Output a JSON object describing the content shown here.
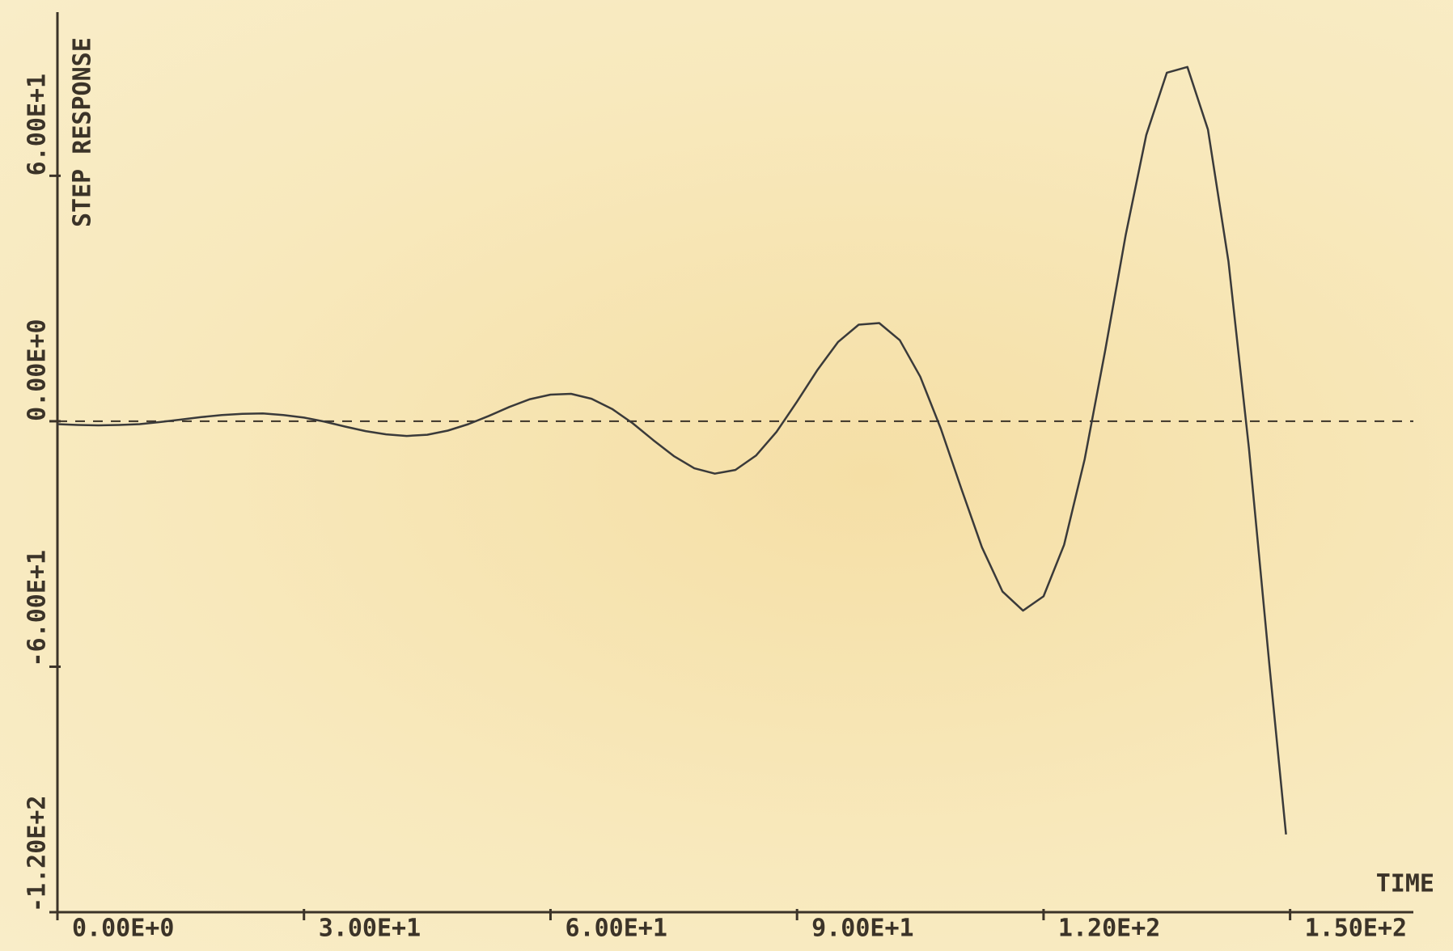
{
  "chart_data": {
    "type": "line",
    "y_label": "STEP RESPONSE",
    "x_label": "TIME",
    "x": [
      0,
      2.5,
      5,
      7.5,
      10,
      12.5,
      15,
      17.5,
      20,
      22.5,
      25,
      27.5,
      30,
      32.5,
      35,
      37.5,
      40,
      42.5,
      45,
      47.5,
      50,
      52.5,
      55,
      57.5,
      60,
      62.5,
      65,
      67.5,
      70,
      72.5,
      75,
      77.5,
      80,
      82.5,
      85,
      87.5,
      90,
      92.5,
      95,
      97.5,
      100,
      102.5,
      105,
      107.5,
      110,
      112.5,
      115,
      117.5,
      120,
      122.5,
      125,
      127.5,
      130,
      132.5,
      135,
      137.5,
      140,
      142.5,
      145,
      147.5,
      149.5
    ],
    "series": [
      {
        "color": "#3a3a3a",
        "values": [
          -0.7,
          -0.9,
          -1.0,
          -0.9,
          -0.7,
          -0.2,
          0.4,
          1.0,
          1.5,
          1.8,
          1.9,
          1.5,
          0.9,
          -0.1,
          -1.3,
          -2.4,
          -3.2,
          -3.6,
          -3.3,
          -2.3,
          -0.7,
          1.3,
          3.5,
          5.4,
          6.5,
          6.7,
          5.5,
          3.0,
          -0.5,
          -4.6,
          -8.5,
          -11.5,
          -12.8,
          -11.9,
          -8.4,
          -2.6,
          4.8,
          12.6,
          19.4,
          23.6,
          24.0,
          19.8,
          10.9,
          -1.8,
          -16.5,
          -30.8,
          -41.6,
          -46.3,
          -42.8,
          -30.2,
          -9.3,
          17.3,
          45.6,
          70.0,
          85.2,
          86.6,
          71.3,
          39.0,
          -6.7,
          -59.9,
          -101.0
        ]
      }
    ],
    "reference_line": 0,
    "xlim": [
      0,
      165
    ],
    "ylim": [
      -120,
      100
    ],
    "xticks": [
      {
        "value": 0,
        "label": "0.00E+0"
      },
      {
        "value": 30,
        "label": "3.00E+1"
      },
      {
        "value": 60,
        "label": "6.00E+1"
      },
      {
        "value": 90,
        "label": "9.00E+1"
      },
      {
        "value": 120,
        "label": "1.20E+2"
      },
      {
        "value": 150,
        "label": "1.50E+2"
      }
    ],
    "yticks": [
      {
        "value": -120,
        "label": "-1.20E+2"
      },
      {
        "value": -60,
        "label": "-6.00E+1"
      },
      {
        "value": 0,
        "label": "0.00E+0"
      },
      {
        "value": 60,
        "label": "6.00E+1"
      }
    ]
  }
}
